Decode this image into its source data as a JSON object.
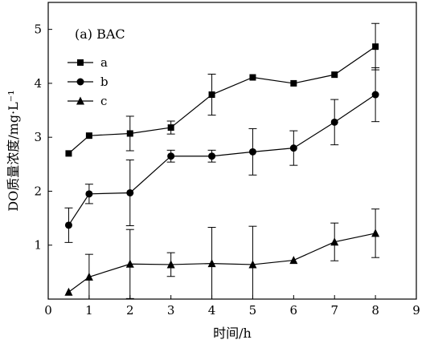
{
  "chart_data": {
    "type": "line",
    "panel_label": "(a) BAC",
    "xlabel": "时间/h",
    "ylabel": "DO质量浓度/mg·L⁻¹",
    "xlim": [
      0,
      9
    ],
    "ylim": [
      0,
      5.5
    ],
    "xticks": [
      0,
      1,
      2,
      3,
      4,
      5,
      6,
      7,
      8,
      9
    ],
    "yticks": [
      1,
      2,
      3,
      4,
      5
    ],
    "legend_position": "top-left",
    "grid": false,
    "x": [
      0.5,
      1,
      2,
      3,
      4,
      5,
      6,
      7,
      8
    ],
    "series": [
      {
        "name": "a",
        "marker": "square",
        "values": [
          2.7,
          3.03,
          3.07,
          3.18,
          3.79,
          4.11,
          4.0,
          4.16,
          4.68
        ],
        "error": [
          0.0,
          0.0,
          0.32,
          0.12,
          0.38,
          0.0,
          0.0,
          0.0,
          0.43
        ]
      },
      {
        "name": "b",
        "marker": "circle",
        "values": [
          1.37,
          1.95,
          1.97,
          2.65,
          2.65,
          2.73,
          2.8,
          3.28,
          3.79
        ],
        "error": [
          0.32,
          0.18,
          0.61,
          0.11,
          0.11,
          0.43,
          0.32,
          0.42,
          0.5
        ]
      },
      {
        "name": "c",
        "marker": "triangle",
        "values": [
          0.13,
          0.41,
          0.65,
          0.64,
          0.66,
          0.64,
          0.72,
          1.06,
          1.22
        ],
        "error": [
          0.0,
          0.42,
          0.64,
          0.22,
          0.67,
          0.71,
          0.0,
          0.35,
          0.45
        ]
      }
    ]
  }
}
